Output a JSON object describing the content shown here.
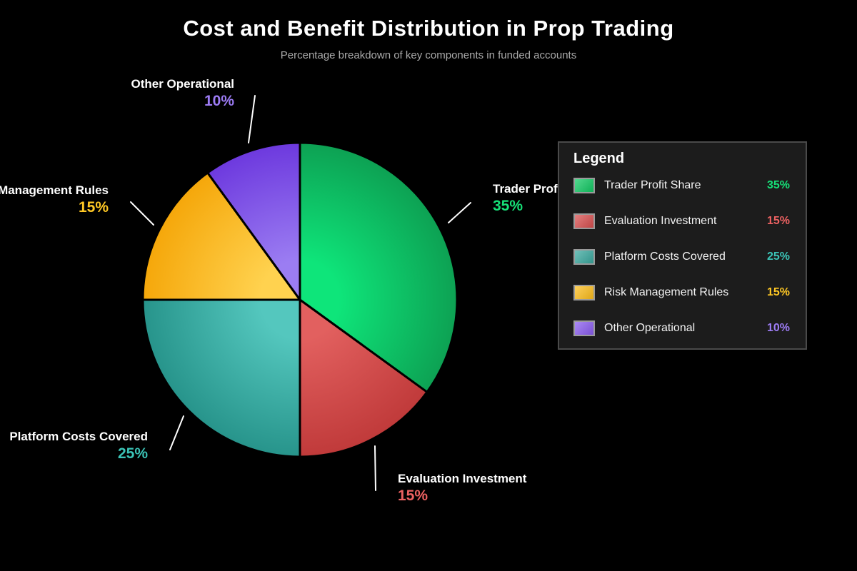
{
  "header": {
    "title": "Cost and Benefit Distribution in Prop Trading",
    "subtitle": "Percentage breakdown of key components in funded accounts"
  },
  "legend": {
    "title": "Legend"
  },
  "chart_data": {
    "type": "pie",
    "title": "Cost and Benefit Distribution in Prop Trading",
    "subtitle": "Percentage breakdown of key components in funded accounts",
    "unit": "%",
    "start_angle_deg": 0,
    "direction": "clockwise",
    "legend_position": "right",
    "slices": [
      {
        "label": "Trader Profit Share",
        "value": 35,
        "pct_label": "35%",
        "color_center": "#0ee57a",
        "color_edge": "#0da153",
        "swatch": "#11c963",
        "text_color": "#16e077"
      },
      {
        "label": "Evaluation Investment",
        "value": 15,
        "pct_label": "15%",
        "color_center": "#e2605f",
        "color_edge": "#c03a3a",
        "swatch": "#d94f4f",
        "text_color": "#ed6262"
      },
      {
        "label": "Platform Costs Covered",
        "value": 25,
        "pct_label": "25%",
        "color_center": "#54c7be",
        "color_edge": "#27948b",
        "swatch": "#3aa89e",
        "text_color": "#3bc4b7"
      },
      {
        "label": "Risk Management Rules",
        "value": 15,
        "pct_label": "15%",
        "color_center": "#ffd24f",
        "color_edge": "#f5a70a",
        "swatch": "#fdbe1c",
        "text_color": "#ffc824"
      },
      {
        "label": "Other Operational",
        "value": 10,
        "pct_label": "10%",
        "color_center": "#9b7df2",
        "color_edge": "#6d39de",
        "swatch": "#8a5cf0",
        "text_color": "#9d7cf5"
      }
    ]
  }
}
